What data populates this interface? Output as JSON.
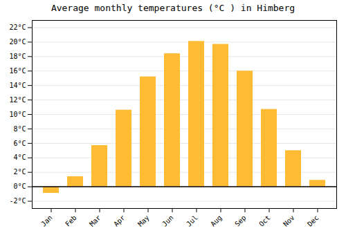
{
  "chart_data": {
    "type": "bar",
    "title": "Average monthly temperatures (°C ) in Himberg",
    "categories": [
      "Jan",
      "Feb",
      "Mar",
      "Apr",
      "May",
      "Jun",
      "Jul",
      "Aug",
      "Sep",
      "Oct",
      "Nov",
      "Dec"
    ],
    "values": [
      -0.9,
      1.4,
      5.7,
      10.6,
      15.2,
      18.4,
      20.1,
      19.7,
      16.0,
      10.7,
      5.0,
      0.9
    ],
    "color": "#FFBB33",
    "ylim": [
      -3,
      23
    ],
    "yticks": [
      {
        "value": -2,
        "label": "-2°C"
      },
      {
        "value": 0,
        "label": "0°C"
      },
      {
        "value": 2,
        "label": "2°C"
      },
      {
        "value": 4,
        "label": "4°C"
      },
      {
        "value": 6,
        "label": "6°C"
      },
      {
        "value": 8,
        "label": "8°C"
      },
      {
        "value": 10,
        "label": "10°C"
      },
      {
        "value": 12,
        "label": "12°C"
      },
      {
        "value": 14,
        "label": "14°C"
      },
      {
        "value": 16,
        "label": "16°C"
      },
      {
        "value": 18,
        "label": "18°C"
      },
      {
        "value": 20,
        "label": "20°C"
      },
      {
        "value": 22,
        "label": "22°C"
      }
    ],
    "grid": true
  }
}
